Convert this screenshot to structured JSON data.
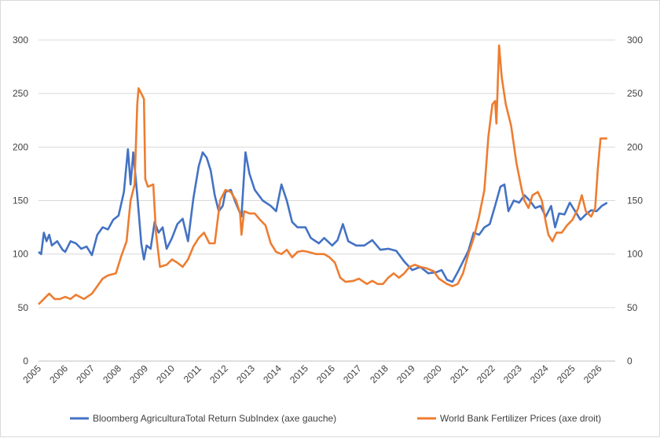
{
  "chart_data": {
    "type": "line",
    "title": "",
    "xlabel": "",
    "ylabel": "",
    "x_ticks": [
      "2005",
      "2006",
      "2007",
      "2008",
      "2009",
      "2010",
      "2011",
      "2012",
      "2013",
      "2014",
      "2015",
      "2016",
      "2017",
      "2018",
      "2019",
      "2020",
      "2021",
      "2022",
      "2023",
      "2024",
      "2025",
      "2026"
    ],
    "xlim": [
      2005,
      2026.6
    ],
    "ylim_left": [
      0,
      300
    ],
    "ylim_right": [
      0,
      300
    ],
    "y_ticks_left": [
      "0",
      "50",
      "100",
      "150",
      "200",
      "250",
      "300"
    ],
    "y_ticks_right": [
      "0",
      "50",
      "100",
      "150",
      "200",
      "250",
      "300"
    ],
    "grid": "horizontal",
    "legend_position": "bottom",
    "series": [
      {
        "name": "Bloomberg AgriculturaTotal Return SubIndex (axe gauche)",
        "axis": "left",
        "color": "#4472c4",
        "points": [
          [
            2005.0,
            102
          ],
          [
            2005.1,
            100
          ],
          [
            2005.2,
            120
          ],
          [
            2005.3,
            112
          ],
          [
            2005.4,
            118
          ],
          [
            2005.5,
            108
          ],
          [
            2005.7,
            112
          ],
          [
            2005.9,
            104
          ],
          [
            2006.0,
            102
          ],
          [
            2006.2,
            112
          ],
          [
            2006.4,
            110
          ],
          [
            2006.6,
            105
          ],
          [
            2006.8,
            107
          ],
          [
            2007.0,
            99
          ],
          [
            2007.2,
            118
          ],
          [
            2007.4,
            125
          ],
          [
            2007.6,
            123
          ],
          [
            2007.8,
            132
          ],
          [
            2008.0,
            136
          ],
          [
            2008.2,
            158
          ],
          [
            2008.35,
            198
          ],
          [
            2008.45,
            165
          ],
          [
            2008.55,
            195
          ],
          [
            2008.7,
            155
          ],
          [
            2008.85,
            110
          ],
          [
            2008.95,
            95
          ],
          [
            2009.05,
            108
          ],
          [
            2009.2,
            105
          ],
          [
            2009.35,
            130
          ],
          [
            2009.5,
            120
          ],
          [
            2009.65,
            125
          ],
          [
            2009.8,
            105
          ],
          [
            2010.0,
            115
          ],
          [
            2010.2,
            128
          ],
          [
            2010.4,
            133
          ],
          [
            2010.6,
            112
          ],
          [
            2010.8,
            152
          ],
          [
            2011.0,
            182
          ],
          [
            2011.15,
            195
          ],
          [
            2011.3,
            190
          ],
          [
            2011.45,
            178
          ],
          [
            2011.6,
            155
          ],
          [
            2011.75,
            140
          ],
          [
            2011.9,
            145
          ],
          [
            2012.0,
            158
          ],
          [
            2012.2,
            160
          ],
          [
            2012.4,
            147
          ],
          [
            2012.6,
            135
          ],
          [
            2012.75,
            195
          ],
          [
            2012.9,
            175
          ],
          [
            2013.1,
            160
          ],
          [
            2013.4,
            150
          ],
          [
            2013.7,
            145
          ],
          [
            2013.9,
            140
          ],
          [
            2014.1,
            165
          ],
          [
            2014.3,
            150
          ],
          [
            2014.5,
            130
          ],
          [
            2014.7,
            125
          ],
          [
            2015.0,
            125
          ],
          [
            2015.2,
            115
          ],
          [
            2015.5,
            110
          ],
          [
            2015.7,
            115
          ],
          [
            2016.0,
            108
          ],
          [
            2016.2,
            113
          ],
          [
            2016.4,
            128
          ],
          [
            2016.6,
            112
          ],
          [
            2016.9,
            108
          ],
          [
            2017.2,
            108
          ],
          [
            2017.5,
            113
          ],
          [
            2017.8,
            104
          ],
          [
            2018.1,
            105
          ],
          [
            2018.4,
            103
          ],
          [
            2018.7,
            93
          ],
          [
            2019.0,
            85
          ],
          [
            2019.3,
            88
          ],
          [
            2019.6,
            82
          ],
          [
            2019.9,
            83
          ],
          [
            2020.1,
            85
          ],
          [
            2020.3,
            76
          ],
          [
            2020.5,
            74
          ],
          [
            2020.7,
            83
          ],
          [
            2020.9,
            93
          ],
          [
            2021.1,
            103
          ],
          [
            2021.3,
            120
          ],
          [
            2021.5,
            118
          ],
          [
            2021.7,
            125
          ],
          [
            2021.9,
            128
          ],
          [
            2022.1,
            145
          ],
          [
            2022.3,
            163
          ],
          [
            2022.45,
            165
          ],
          [
            2022.6,
            140
          ],
          [
            2022.8,
            150
          ],
          [
            2023.0,
            148
          ],
          [
            2023.2,
            155
          ],
          [
            2023.4,
            150
          ],
          [
            2023.6,
            143
          ],
          [
            2023.8,
            145
          ],
          [
            2024.0,
            135
          ],
          [
            2024.2,
            145
          ],
          [
            2024.35,
            125
          ],
          [
            2024.5,
            138
          ],
          [
            2024.7,
            137
          ],
          [
            2024.9,
            148
          ],
          [
            2025.1,
            140
          ],
          [
            2025.3,
            132
          ],
          [
            2025.5,
            137
          ],
          [
            2025.7,
            141
          ],
          [
            2025.9,
            140
          ],
          [
            2026.1,
            145
          ],
          [
            2026.3,
            148
          ]
        ]
      },
      {
        "name": "World Bank Fertilizer Prices (axe droit)",
        "axis": "right",
        "color": "#ed7d31",
        "points": [
          [
            2005.0,
            53
          ],
          [
            2005.2,
            58
          ],
          [
            2005.4,
            63
          ],
          [
            2005.6,
            58
          ],
          [
            2005.8,
            58
          ],
          [
            2006.0,
            60
          ],
          [
            2006.2,
            58
          ],
          [
            2006.4,
            62
          ],
          [
            2006.7,
            58
          ],
          [
            2007.0,
            63
          ],
          [
            2007.2,
            70
          ],
          [
            2007.4,
            77
          ],
          [
            2007.6,
            80
          ],
          [
            2007.9,
            82
          ],
          [
            2008.1,
            98
          ],
          [
            2008.3,
            112
          ],
          [
            2008.45,
            150
          ],
          [
            2008.6,
            165
          ],
          [
            2008.7,
            240
          ],
          [
            2008.75,
            255
          ],
          [
            2008.85,
            250
          ],
          [
            2008.95,
            245
          ],
          [
            2009.0,
            170
          ],
          [
            2009.1,
            163
          ],
          [
            2009.3,
            165
          ],
          [
            2009.4,
            120
          ],
          [
            2009.55,
            88
          ],
          [
            2009.8,
            90
          ],
          [
            2010.0,
            95
          ],
          [
            2010.2,
            92
          ],
          [
            2010.4,
            88
          ],
          [
            2010.6,
            95
          ],
          [
            2010.8,
            107
          ],
          [
            2011.0,
            115
          ],
          [
            2011.2,
            120
          ],
          [
            2011.4,
            110
          ],
          [
            2011.6,
            110
          ],
          [
            2011.8,
            150
          ],
          [
            2012.0,
            160
          ],
          [
            2012.2,
            158
          ],
          [
            2012.4,
            150
          ],
          [
            2012.55,
            138
          ],
          [
            2012.6,
            118
          ],
          [
            2012.7,
            140
          ],
          [
            2012.9,
            138
          ],
          [
            2013.1,
            138
          ],
          [
            2013.3,
            132
          ],
          [
            2013.5,
            127
          ],
          [
            2013.7,
            110
          ],
          [
            2013.9,
            102
          ],
          [
            2014.1,
            100
          ],
          [
            2014.3,
            104
          ],
          [
            2014.5,
            97
          ],
          [
            2014.7,
            102
          ],
          [
            2014.9,
            103
          ],
          [
            2015.1,
            102
          ],
          [
            2015.4,
            100
          ],
          [
            2015.7,
            100
          ],
          [
            2015.9,
            97
          ],
          [
            2016.1,
            92
          ],
          [
            2016.3,
            78
          ],
          [
            2016.5,
            74
          ],
          [
            2016.8,
            75
          ],
          [
            2017.0,
            77
          ],
          [
            2017.3,
            72
          ],
          [
            2017.5,
            75
          ],
          [
            2017.7,
            72
          ],
          [
            2017.9,
            72
          ],
          [
            2018.1,
            78
          ],
          [
            2018.3,
            82
          ],
          [
            2018.5,
            78
          ],
          [
            2018.7,
            82
          ],
          [
            2018.9,
            88
          ],
          [
            2019.1,
            90
          ],
          [
            2019.3,
            88
          ],
          [
            2019.5,
            87
          ],
          [
            2019.8,
            84
          ],
          [
            2020.0,
            77
          ],
          [
            2020.3,
            72
          ],
          [
            2020.5,
            70
          ],
          [
            2020.7,
            72
          ],
          [
            2020.9,
            82
          ],
          [
            2021.1,
            100
          ],
          [
            2021.3,
            115
          ],
          [
            2021.5,
            135
          ],
          [
            2021.7,
            160
          ],
          [
            2021.85,
            210
          ],
          [
            2022.0,
            240
          ],
          [
            2022.1,
            243
          ],
          [
            2022.15,
            222
          ],
          [
            2022.25,
            295
          ],
          [
            2022.35,
            265
          ],
          [
            2022.5,
            240
          ],
          [
            2022.7,
            220
          ],
          [
            2022.9,
            185
          ],
          [
            2023.1,
            160
          ],
          [
            2023.2,
            150
          ],
          [
            2023.35,
            143
          ],
          [
            2023.5,
            155
          ],
          [
            2023.7,
            158
          ],
          [
            2023.85,
            150
          ],
          [
            2024.0,
            130
          ],
          [
            2024.1,
            118
          ],
          [
            2024.25,
            112
          ],
          [
            2024.4,
            120
          ],
          [
            2024.6,
            120
          ],
          [
            2024.8,
            127
          ],
          [
            2025.0,
            132
          ],
          [
            2025.2,
            142
          ],
          [
            2025.35,
            155
          ],
          [
            2025.5,
            140
          ],
          [
            2025.7,
            135
          ],
          [
            2025.85,
            143
          ],
          [
            2025.95,
            180
          ],
          [
            2026.05,
            208
          ],
          [
            2026.3,
            208
          ]
        ]
      }
    ]
  }
}
